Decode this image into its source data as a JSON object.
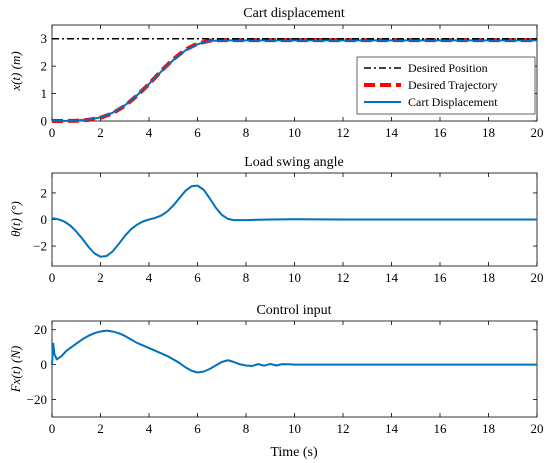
{
  "figure": {
    "xlabel": "Time (s)"
  },
  "colors": {
    "desired_position": "#000000",
    "desired_trajectory": "#ff0000",
    "response": "#0072bd",
    "axes": "#000000",
    "background": "#ffffff"
  },
  "chart_data": [
    {
      "type": "line",
      "title": "Cart displacement",
      "ylabel": "x(t) (m)",
      "xlim": [
        0,
        20
      ],
      "ylim": [
        0,
        3.5
      ],
      "xticks": [
        0,
        2,
        4,
        6,
        8,
        10,
        12,
        14,
        16,
        18,
        20
      ],
      "yticks": [
        0,
        1,
        2,
        3
      ],
      "grid": false,
      "legend": "right",
      "legend_entries": [
        "Desired Position",
        "Desired Trajectory",
        "Cart Displacement"
      ],
      "series": [
        {
          "name": "Desired Position",
          "style": "dash-dot",
          "x": [
            0,
            20
          ],
          "y": [
            3,
            3
          ]
        },
        {
          "name": "Desired Trajectory",
          "style": "dashed",
          "x": [
            0,
            0.5,
            1,
            1.5,
            2,
            2.5,
            3,
            3.5,
            4,
            4.5,
            5,
            5.5,
            6,
            6.5,
            7,
            7.5,
            8,
            10,
            12,
            14,
            16,
            18,
            20
          ],
          "y": [
            0,
            0,
            0.01,
            0.04,
            0.12,
            0.28,
            0.55,
            0.92,
            1.35,
            1.82,
            2.25,
            2.6,
            2.82,
            2.93,
            2.95,
            2.95,
            2.95,
            2.95,
            2.95,
            2.95,
            2.95,
            2.95,
            2.95
          ]
        },
        {
          "name": "Cart Displacement",
          "style": "solid",
          "x": [
            0,
            0.5,
            1,
            1.5,
            2,
            2.5,
            3,
            3.5,
            4,
            4.5,
            5,
            5.5,
            6,
            6.5,
            7,
            7.5,
            8,
            10,
            12,
            14,
            16,
            18,
            20
          ],
          "y": [
            0,
            0,
            0.02,
            0.05,
            0.13,
            0.3,
            0.57,
            0.93,
            1.35,
            1.8,
            2.22,
            2.57,
            2.8,
            2.92,
            2.94,
            2.94,
            2.94,
            2.94,
            2.94,
            2.94,
            2.94,
            2.94,
            2.94
          ]
        }
      ]
    },
    {
      "type": "line",
      "title": "Load swing angle",
      "ylabel": "θ(t) (°)",
      "xlim": [
        0,
        20
      ],
      "ylim": [
        -3.5,
        3.5
      ],
      "xticks": [
        0,
        2,
        4,
        6,
        8,
        10,
        12,
        14,
        16,
        18,
        20
      ],
      "yticks": [
        -2,
        0,
        2
      ],
      "grid": false,
      "series": [
        {
          "name": "Load swing angle",
          "style": "solid",
          "x": [
            0,
            0.25,
            0.5,
            0.75,
            1,
            1.25,
            1.5,
            1.75,
            2,
            2.25,
            2.5,
            2.75,
            3,
            3.25,
            3.5,
            3.75,
            4,
            4.25,
            4.5,
            4.75,
            5,
            5.25,
            5.5,
            5.75,
            6,
            6.25,
            6.5,
            6.75,
            7,
            7.25,
            7.5,
            8,
            8.5,
            9,
            10,
            12,
            14,
            16,
            18,
            20
          ],
          "y": [
            0.1,
            0.02,
            -0.15,
            -0.45,
            -0.9,
            -1.45,
            -2.05,
            -2.55,
            -2.8,
            -2.75,
            -2.4,
            -1.85,
            -1.25,
            -0.75,
            -0.4,
            -0.15,
            0.0,
            0.12,
            0.3,
            0.6,
            1.05,
            1.6,
            2.15,
            2.5,
            2.55,
            2.25,
            1.6,
            0.9,
            0.35,
            0.05,
            -0.05,
            -0.05,
            -0.02,
            0.0,
            0.02,
            0.0,
            0.0,
            0.0,
            0.0,
            0.0
          ]
        }
      ]
    },
    {
      "type": "line",
      "title": "Control input",
      "ylabel": "Fx(t) (N)",
      "xlim": [
        0,
        20
      ],
      "ylim": [
        -30,
        25
      ],
      "xticks": [
        0,
        2,
        4,
        6,
        8,
        10,
        12,
        14,
        16,
        18,
        20
      ],
      "yticks": [
        -20,
        0,
        20
      ],
      "grid": false,
      "series": [
        {
          "name": "Control input",
          "style": "solid",
          "x": [
            0,
            0.05,
            0.1,
            0.2,
            0.4,
            0.6,
            0.8,
            1,
            1.25,
            1.5,
            1.75,
            2,
            2.25,
            2.5,
            2.75,
            3,
            3.25,
            3.5,
            3.75,
            4,
            4.25,
            4.5,
            4.75,
            5,
            5.25,
            5.5,
            5.75,
            6,
            6.25,
            6.5,
            6.75,
            7,
            7.25,
            7.5,
            7.75,
            8,
            8.25,
            8.5,
            8.75,
            9,
            9.25,
            9.5,
            9.75,
            10,
            12,
            14,
            16,
            18,
            20
          ],
          "y": [
            0,
            12,
            6,
            3,
            5,
            8,
            10,
            12,
            14.5,
            16.5,
            18,
            19,
            19.5,
            19,
            18,
            16.5,
            14.5,
            12.5,
            11,
            9.5,
            8,
            6.5,
            5,
            3,
            1,
            -1.5,
            -3.5,
            -4.5,
            -4,
            -2.5,
            -0.5,
            1.5,
            2.5,
            1.5,
            0.2,
            -0.5,
            -0.8,
            0.3,
            -0.6,
            0.4,
            -0.5,
            0.3,
            0.2,
            0,
            0,
            0,
            0,
            0,
            0
          ]
        }
      ]
    }
  ]
}
